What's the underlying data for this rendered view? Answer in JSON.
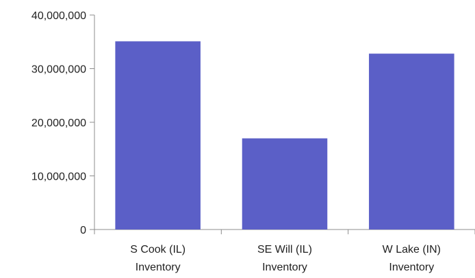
{
  "chart_data": {
    "type": "bar",
    "title": "",
    "xlabel": "",
    "ylabel": "",
    "categories": [
      [
        "S Cook (IL)",
        "Inventory"
      ],
      [
        "SE Will (IL)",
        "Inventory"
      ],
      [
        "W Lake (IN)",
        "Inventory"
      ]
    ],
    "values": [
      35100000,
      17000000,
      32800000
    ],
    "ylim": [
      0,
      40000000
    ],
    "yticks": [
      {
        "value": 0,
        "label": "0"
      },
      {
        "value": 10000000,
        "label": "10,000,000"
      },
      {
        "value": 20000000,
        "label": "20,000,000"
      },
      {
        "value": 30000000,
        "label": "30,000,000"
      },
      {
        "value": 40000000,
        "label": "40,000,000"
      }
    ],
    "grid": false,
    "legend": "none",
    "bar_color": "#5b5fc7",
    "axis_color": "#8c8c8c"
  }
}
